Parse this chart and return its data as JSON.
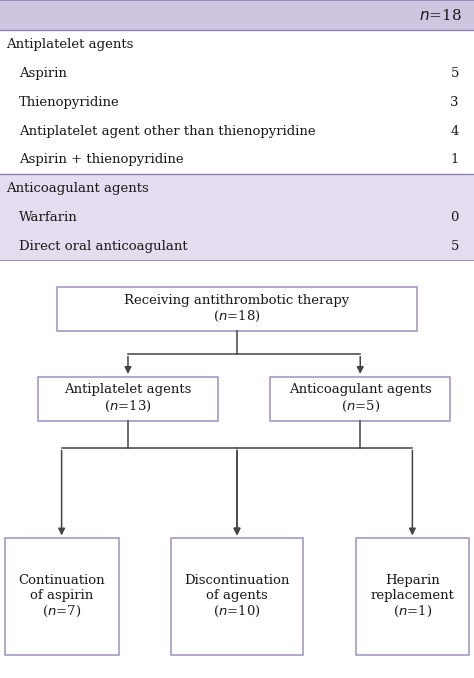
{
  "bg_color": "#ffffff",
  "header_bg": "#cfc5e0",
  "section_bg_anticoag": "#e4ddf0",
  "border_color": "#9080b0",
  "text_color": "#1a1a1a",
  "table_rows": [
    {
      "label": "Antiplatelet agents",
      "value": null,
      "indent": false
    },
    {
      "label": "Aspirin",
      "value": "5",
      "indent": true
    },
    {
      "label": "Thienopyridine",
      "value": "3",
      "indent": true
    },
    {
      "label": "Antiplatelet agent other than thienopyridine",
      "value": "4",
      "indent": true
    },
    {
      "label": "Aspirin + thienopyridine",
      "value": "1",
      "indent": true
    },
    {
      "label": "Anticoagulant agents",
      "value": null,
      "indent": false
    },
    {
      "label": "Warfarin",
      "value": "0",
      "indent": true
    },
    {
      "label": "Direct oral anticoagulant",
      "value": "5",
      "indent": true
    }
  ],
  "font_size_table": 9.5,
  "font_size_flow": 9.5,
  "box_color": "#a090c0",
  "arrow_color": "#444444",
  "line_color": "#444444"
}
